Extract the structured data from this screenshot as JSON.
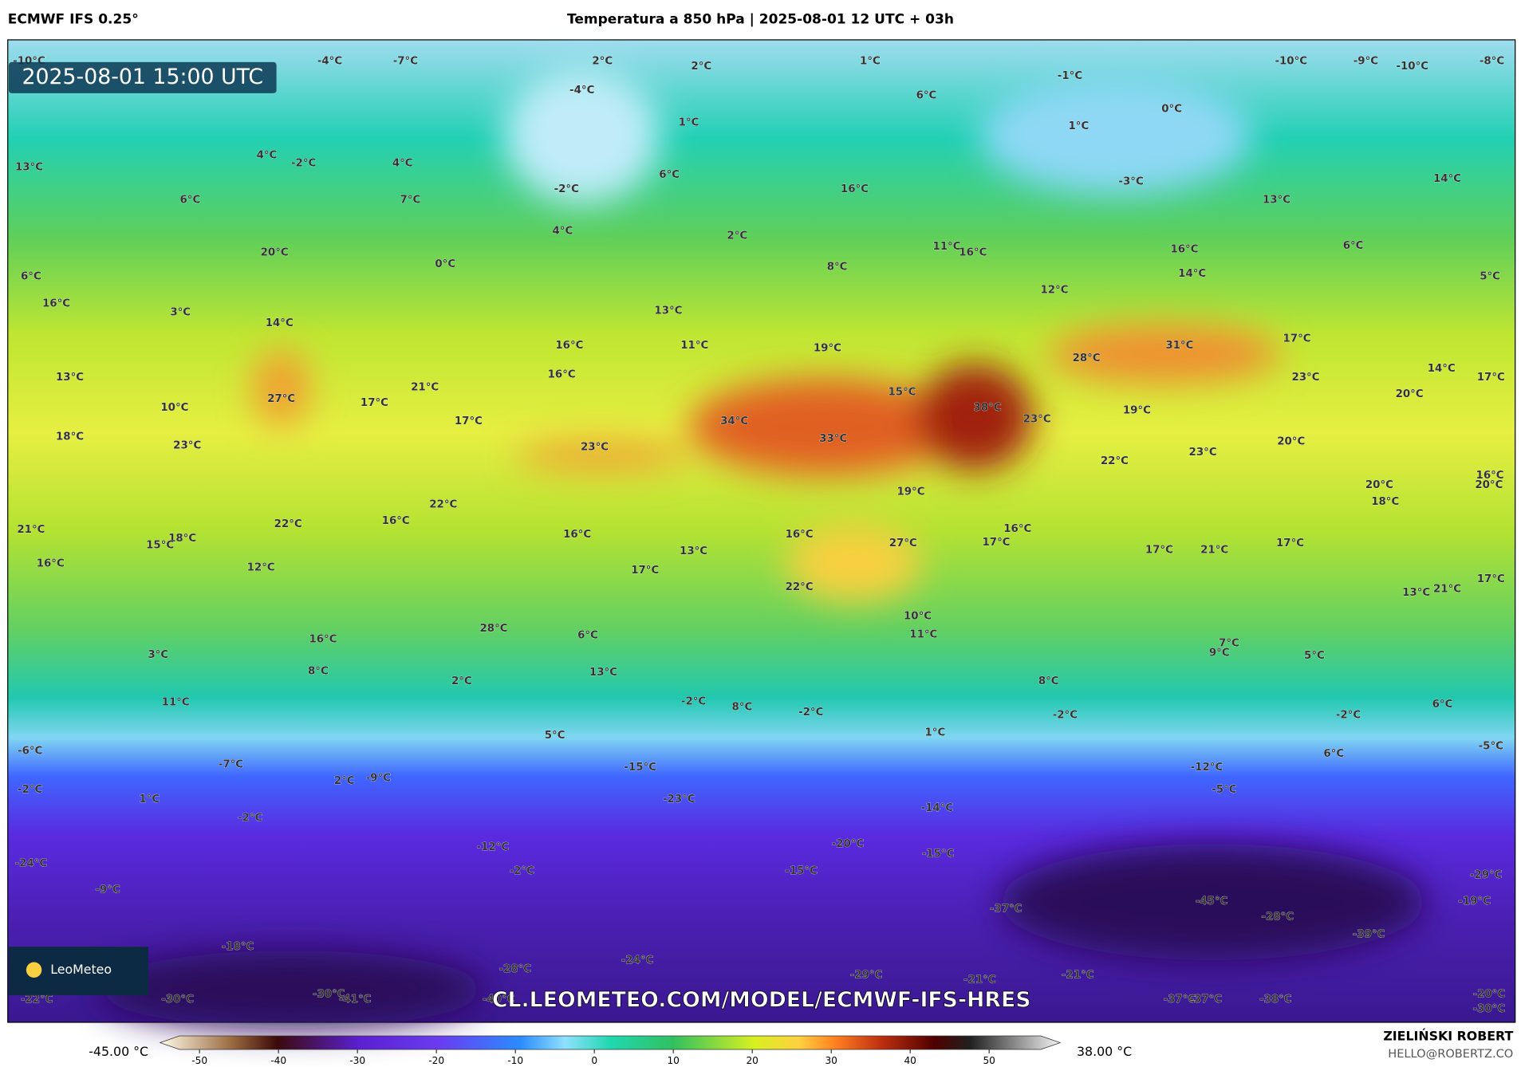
{
  "header": {
    "left_title": "ECMWF IFS 0.25°",
    "center_title": "Temperatura a 850 hPa | 2025-08-01 12 UTC + 03h"
  },
  "map": {
    "timestamp": "2025-08-01 15:00 UTC",
    "logo_text": "LeoMeteo",
    "watermark_url": "CL.LEOMETEO.COM/MODEL/ECMWF-IFS-HRES",
    "labels": [
      "-10°C",
      "-4°C",
      "-7°C",
      "2°C",
      "2°C",
      "1°C",
      "-1°C",
      "-10°C",
      "-9°C",
      "-10°C",
      "-8°C",
      "-4°C",
      "6°C",
      "0°C",
      "1°C",
      "1°C",
      "13°C",
      "4°C",
      "-2°C",
      "4°C",
      "6°C",
      "-3°C",
      "14°C",
      "6°C",
      "7°C",
      "-2°C",
      "16°C",
      "13°C",
      "4°C",
      "2°C",
      "11°C",
      "16°C",
      "16°C",
      "6°C",
      "20°C",
      "0°C",
      "8°C",
      "14°C",
      "6°C",
      "5°C",
      "16°C",
      "3°C",
      "12°C",
      "14°C",
      "13°C",
      "17°C",
      "16°C",
      "11°C",
      "19°C",
      "31°C",
      "13°C",
      "16°C",
      "28°C",
      "14°C",
      "17°C",
      "23°C",
      "21°C",
      "27°C",
      "17°C",
      "10°C",
      "15°C",
      "38°C",
      "20°C",
      "19°C",
      "23°C",
      "17°C",
      "34°C",
      "18°C",
      "23°C",
      "33°C",
      "23°C",
      "20°C",
      "23°C",
      "22°C",
      "16°C",
      "20°C",
      "19°C",
      "20°C",
      "18°C",
      "22°C",
      "22°C",
      "16°C",
      "16°C",
      "16°C",
      "21°C",
      "18°C",
      "15°C",
      "27°C",
      "16°C",
      "17°C",
      "17°C",
      "21°C",
      "17°C",
      "13°C",
      "16°C",
      "12°C",
      "17°C",
      "17°C",
      "22°C",
      "13°C",
      "21°C",
      "10°C",
      "28°C",
      "11°C",
      "16°C",
      "6°C",
      "7°C",
      "9°C",
      "5°C",
      "3°C",
      "8°C",
      "13°C",
      "2°C",
      "8°C",
      "11°C",
      "-2°C",
      "8°C",
      "-2°C",
      "-2°C",
      "-2°C",
      "6°C",
      "1°C",
      "5°C",
      "-6°C",
      "-5°C",
      "6°C",
      "-7°C",
      "-15°C",
      "-12°C",
      "2°C",
      "-9°C",
      "-2°C",
      "-5°C",
      "1°C",
      "-23°C",
      "-14°C",
      "-2°C",
      "-20°C",
      "-12°C",
      "-15°C",
      "-24°C",
      "-2°C",
      "-15°C",
      "-29°C",
      "-9°C",
      "-19°C",
      "-37°C",
      "-45°C",
      "-28°C",
      "-39°C",
      "-18°C",
      "-24°C",
      "-28°C",
      "-29°C",
      "-21°C",
      "-21°C",
      "-22°C",
      "-30°C",
      "-30°C",
      "-41°C",
      "-40°C",
      "-37°C",
      "-37°C",
      "-38°C",
      "-20°C",
      "-30°C"
    ]
  },
  "colorbar": {
    "min_label": "-45.00 °C",
    "max_label": "38.00 °C",
    "range": [
      -55,
      59
    ],
    "ticks": [
      -50,
      -40,
      -30,
      -20,
      -10,
      0,
      10,
      20,
      30,
      40,
      50
    ]
  },
  "footer": {
    "author": "ZIELIŃSKI ROBERT",
    "email": "HELLO@ROBERTZ.CO"
  }
}
